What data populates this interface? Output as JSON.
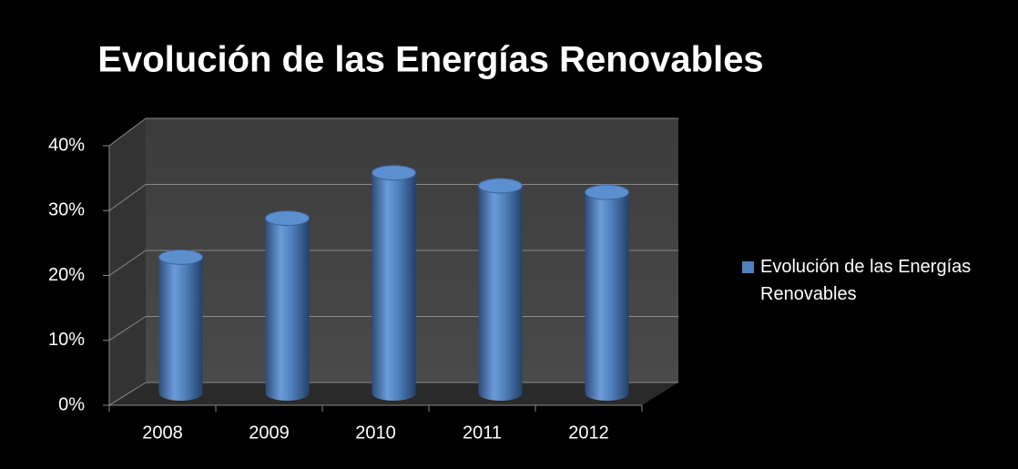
{
  "chart_data": {
    "type": "bar",
    "title": "Evolución de las Energías Renovables",
    "categories": [
      "2008",
      "2009",
      "2010",
      "2011",
      "2012"
    ],
    "series": [
      {
        "name": "Evolución de las Energías Renovables",
        "color": "#4f81bd",
        "values": [
          21,
          27,
          34,
          32,
          31
        ]
      }
    ],
    "ylim": [
      0,
      40
    ],
    "yticks": [
      {
        "value": 0,
        "label": "0%"
      },
      {
        "value": 10,
        "label": "10%"
      },
      {
        "value": 20,
        "label": "20%"
      },
      {
        "value": 30,
        "label": "30%"
      },
      {
        "value": 40,
        "label": "40%"
      }
    ],
    "grid": true,
    "legend": "right"
  }
}
